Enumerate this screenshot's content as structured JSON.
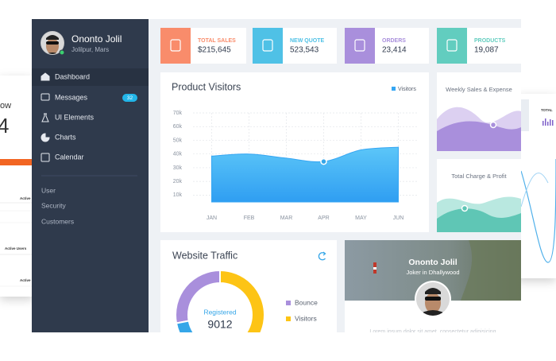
{
  "sidebar": {
    "user": {
      "name": "Ononto Jolil",
      "location": "Jolilpur, Mars"
    },
    "menu": [
      {
        "label": "Dashboard"
      },
      {
        "label": "Messages",
        "badge": "32"
      },
      {
        "label": "UI Elements"
      },
      {
        "label": "Charts"
      },
      {
        "label": "Calendar"
      }
    ],
    "links": [
      "User",
      "Security",
      "Customers"
    ]
  },
  "stats": [
    {
      "label": "TOTAL SALES",
      "value": "$215,645",
      "color": "#f98c6b"
    },
    {
      "label": "NEW QUOTE",
      "value": "523,543",
      "color": "#4fc1e6"
    },
    {
      "label": "ORDERS",
      "value": "23,414",
      "color": "#a98fdc"
    },
    {
      "label": "PRODUCTS",
      "value": "19,087",
      "color": "#62cdbf"
    }
  ],
  "chart_data": [
    {
      "type": "area",
      "title": "Product Visitors",
      "categories": [
        "JAN",
        "FEB",
        "MAR",
        "APR",
        "MAY",
        "JUN"
      ],
      "series": [
        {
          "name": "Visitors",
          "color": "#35a6f3",
          "values": [
            38500,
            40000,
            37000,
            34500,
            43000,
            45000
          ]
        }
      ],
      "ylim": [
        5000,
        70000
      ],
      "yticks": [
        {
          "value": 10000,
          "label": "10k"
        },
        {
          "value": 20000,
          "label": "20k"
        },
        {
          "value": 30000,
          "label": "30k"
        },
        {
          "value": 40000,
          "label": "40k"
        },
        {
          "value": 50000,
          "label": "50k"
        },
        {
          "value": 60000,
          "label": "60k"
        },
        {
          "value": 70000,
          "label": "70k"
        }
      ],
      "grid": true
    },
    {
      "type": "pie",
      "title": "Website Traffic",
      "categories": [
        "Bounce",
        "Visitors",
        null
      ],
      "values": [
        28,
        50,
        22
      ],
      "colors": [
        "#a98fdc",
        "#fdc415",
        "#35a6e8"
      ],
      "center_label": "Registered",
      "center_value": 9012
    }
  ],
  "mini_charts": [
    {
      "title": "Weekly Sales & Expense"
    },
    {
      "title": "Total Charge & Profit"
    }
  ],
  "profile": {
    "name": "Ononto Jolil",
    "role": "Joker in Dhallywood",
    "text": "Lorem ipsum dolor sit amet, consectetur adipisicing"
  },
  "background": {
    "left": [
      "ow",
      "4",
      "Active",
      "Active Users",
      "Active"
    ],
    "right": [
      "TOTAL"
    ]
  }
}
